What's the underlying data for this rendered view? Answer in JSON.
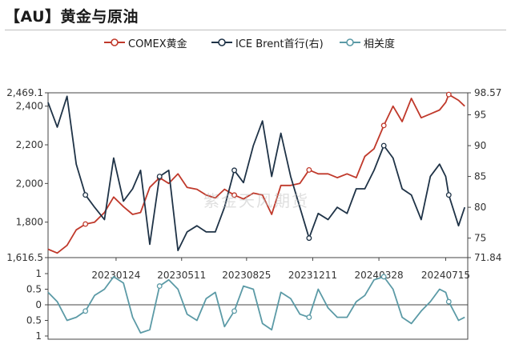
{
  "title": "【AU】黄金与原油",
  "watermark": "紫金天风期货",
  "colors": {
    "gold": "#c0392b",
    "brent": "#1f3347",
    "corr": "#5b9aa6"
  },
  "legend": [
    {
      "label": "COMEX黄金",
      "color": "#c0392b",
      "icon": "line-marker-icon"
    },
    {
      "label": "ICE Brent首行(右)",
      "color": "#1f3347",
      "icon": "line-marker-icon"
    },
    {
      "label": "相关度",
      "color": "#5b9aa6",
      "icon": "line-marker-icon"
    }
  ],
  "chart_data": {
    "type": "line",
    "x_ticks": [
      "20230124",
      "20230511",
      "20230825",
      "20231211",
      "20240328",
      "20240715"
    ],
    "x_range": [
      "2022-10-05",
      "2024-08-20"
    ],
    "y_left": {
      "range": [
        1616.5,
        2469.1
      ],
      "tick_labels": [
        "2,469.1",
        "2,400",
        "2,200",
        "2,000",
        "1,800",
        "1,616.5"
      ],
      "ticks": [
        2469.1,
        2400,
        2200,
        2000,
        1800,
        1616.5
      ]
    },
    "y_right": {
      "range": [
        71.84,
        98.57
      ],
      "tick_labels": [
        "98.57",
        "95",
        "90",
        "85",
        "80",
        "75",
        "71.84"
      ],
      "ticks": [
        98.57,
        95,
        90,
        85,
        80,
        75,
        71.84
      ]
    },
    "y_corr": {
      "range": [
        -1,
        1
      ],
      "tick_labels": [
        "1",
        "0.5",
        "0",
        "0.5",
        "1"
      ],
      "ticks": [
        1,
        0.5,
        0,
        -0.5,
        -1
      ]
    },
    "series": [
      {
        "name": "COMEX黄金",
        "axis": "left",
        "points": [
          [
            "2022-10-05",
            1660
          ],
          [
            "2022-10-20",
            1640
          ],
          [
            "2022-11-05",
            1680
          ],
          [
            "2022-11-20",
            1760
          ],
          [
            "2022-12-05",
            1790
          ],
          [
            "2022-12-20",
            1800
          ],
          [
            "2023-01-05",
            1850
          ],
          [
            "2023-01-20",
            1930
          ],
          [
            "2023-02-05",
            1880
          ],
          [
            "2023-02-20",
            1840
          ],
          [
            "2023-03-05",
            1850
          ],
          [
            "2023-03-20",
            1980
          ],
          [
            "2023-04-05",
            2030
          ],
          [
            "2023-04-20",
            2000
          ],
          [
            "2023-05-05",
            2050
          ],
          [
            "2023-05-20",
            1980
          ],
          [
            "2023-06-05",
            1970
          ],
          [
            "2023-06-20",
            1940
          ],
          [
            "2023-07-05",
            1925
          ],
          [
            "2023-07-20",
            1970
          ],
          [
            "2023-08-05",
            1940
          ],
          [
            "2023-08-20",
            1920
          ],
          [
            "2023-09-05",
            1950
          ],
          [
            "2023-09-20",
            1940
          ],
          [
            "2023-10-05",
            1840
          ],
          [
            "2023-10-20",
            1990
          ],
          [
            "2023-11-05",
            1990
          ],
          [
            "2023-11-20",
            2000
          ],
          [
            "2023-12-05",
            2070
          ],
          [
            "2023-12-20",
            2050
          ],
          [
            "2024-01-05",
            2050
          ],
          [
            "2024-01-20",
            2030
          ],
          [
            "2024-02-05",
            2050
          ],
          [
            "2024-02-20",
            2030
          ],
          [
            "2024-03-05",
            2140
          ],
          [
            "2024-03-20",
            2180
          ],
          [
            "2024-04-05",
            2300
          ],
          [
            "2024-04-20",
            2400
          ],
          [
            "2024-05-05",
            2320
          ],
          [
            "2024-05-20",
            2440
          ],
          [
            "2024-06-05",
            2340
          ],
          [
            "2024-06-20",
            2360
          ],
          [
            "2024-07-05",
            2380
          ],
          [
            "2024-07-15",
            2420
          ],
          [
            "2024-07-20",
            2460
          ],
          [
            "2024-08-05",
            2430
          ],
          [
            "2024-08-15",
            2400
          ]
        ]
      },
      {
        "name": "ICE Brent首行(右)",
        "axis": "right",
        "points": [
          [
            "2022-10-05",
            97
          ],
          [
            "2022-10-20",
            93
          ],
          [
            "2022-11-05",
            98
          ],
          [
            "2022-11-20",
            87
          ],
          [
            "2022-12-05",
            82
          ],
          [
            "2022-12-20",
            80
          ],
          [
            "2023-01-05",
            78
          ],
          [
            "2023-01-20",
            88
          ],
          [
            "2023-02-05",
            81
          ],
          [
            "2023-02-20",
            83
          ],
          [
            "2023-03-05",
            86
          ],
          [
            "2023-03-20",
            74
          ],
          [
            "2023-04-05",
            85
          ],
          [
            "2023-04-20",
            86
          ],
          [
            "2023-05-05",
            73
          ],
          [
            "2023-05-20",
            76
          ],
          [
            "2023-06-05",
            77
          ],
          [
            "2023-06-20",
            76
          ],
          [
            "2023-07-05",
            76
          ],
          [
            "2023-07-20",
            80
          ],
          [
            "2023-08-05",
            86
          ],
          [
            "2023-08-20",
            84
          ],
          [
            "2023-09-05",
            90
          ],
          [
            "2023-09-20",
            94
          ],
          [
            "2023-10-05",
            85
          ],
          [
            "2023-10-20",
            92
          ],
          [
            "2023-11-05",
            85
          ],
          [
            "2023-11-20",
            80
          ],
          [
            "2023-12-05",
            75
          ],
          [
            "2023-12-20",
            79
          ],
          [
            "2024-01-05",
            78
          ],
          [
            "2024-01-20",
            80
          ],
          [
            "2024-02-05",
            79
          ],
          [
            "2024-02-20",
            83
          ],
          [
            "2024-03-05",
            83
          ],
          [
            "2024-03-20",
            86
          ],
          [
            "2024-04-05",
            90
          ],
          [
            "2024-04-20",
            88
          ],
          [
            "2024-05-05",
            83
          ],
          [
            "2024-05-20",
            82
          ],
          [
            "2024-06-05",
            78
          ],
          [
            "2024-06-20",
            85
          ],
          [
            "2024-07-05",
            87
          ],
          [
            "2024-07-15",
            85
          ],
          [
            "2024-07-20",
            82
          ],
          [
            "2024-08-05",
            77
          ],
          [
            "2024-08-15",
            80
          ]
        ]
      },
      {
        "name": "相关度",
        "axis": "corr",
        "points": [
          [
            "2022-10-05",
            0.4
          ],
          [
            "2022-10-20",
            0.1
          ],
          [
            "2022-11-05",
            -0.5
          ],
          [
            "2022-11-20",
            -0.4
          ],
          [
            "2022-12-05",
            -0.2
          ],
          [
            "2022-12-20",
            0.3
          ],
          [
            "2023-01-05",
            0.5
          ],
          [
            "2023-01-20",
            0.9
          ],
          [
            "2023-02-05",
            0.7
          ],
          [
            "2023-02-20",
            -0.4
          ],
          [
            "2023-03-05",
            -0.9
          ],
          [
            "2023-03-20",
            -0.8
          ],
          [
            "2023-04-05",
            0.6
          ],
          [
            "2023-04-20",
            0.8
          ],
          [
            "2023-05-05",
            0.5
          ],
          [
            "2023-05-20",
            -0.3
          ],
          [
            "2023-06-05",
            -0.5
          ],
          [
            "2023-06-20",
            0.2
          ],
          [
            "2023-07-05",
            0.4
          ],
          [
            "2023-07-20",
            -0.7
          ],
          [
            "2023-08-05",
            -0.2
          ],
          [
            "2023-08-20",
            0.6
          ],
          [
            "2023-09-05",
            0.5
          ],
          [
            "2023-09-20",
            -0.6
          ],
          [
            "2023-10-05",
            -0.8
          ],
          [
            "2023-10-20",
            0.4
          ],
          [
            "2023-11-05",
            0.2
          ],
          [
            "2023-11-20",
            -0.3
          ],
          [
            "2023-12-05",
            -0.4
          ],
          [
            "2023-12-20",
            0.5
          ],
          [
            "2024-01-05",
            -0.1
          ],
          [
            "2024-01-20",
            -0.4
          ],
          [
            "2024-02-05",
            -0.4
          ],
          [
            "2024-02-20",
            0.1
          ],
          [
            "2024-03-05",
            0.3
          ],
          [
            "2024-03-20",
            0.8
          ],
          [
            "2024-04-05",
            0.9
          ],
          [
            "2024-04-20",
            0.5
          ],
          [
            "2024-05-05",
            -0.4
          ],
          [
            "2024-05-20",
            -0.6
          ],
          [
            "2024-06-05",
            -0.2
          ],
          [
            "2024-06-20",
            0.1
          ],
          [
            "2024-07-05",
            0.5
          ],
          [
            "2024-07-15",
            0.4
          ],
          [
            "2024-07-20",
            0.1
          ],
          [
            "2024-08-05",
            -0.5
          ],
          [
            "2024-08-15",
            -0.4
          ]
        ]
      }
    ]
  }
}
